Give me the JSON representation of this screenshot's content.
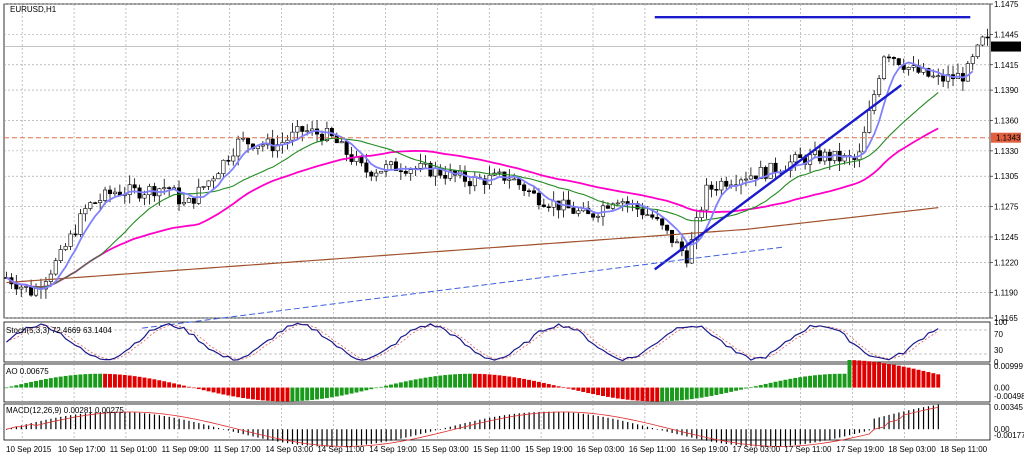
{
  "symbol": "EURUSD,H1",
  "stoch_label": "Stoch(5,3,3) 72.4669 63.1404",
  "ao_label": "AO 0.00675",
  "macd_label": "MACD(12,26,9) 0.00281 0.00275",
  "current_price": "1.1433",
  "hline_price": "1.1343",
  "colors": {
    "bull": "#ffffff",
    "bear": "#000000",
    "ma_fast": "#8080ff",
    "ma_green": "#228b22",
    "ma_magenta": "#ff00c8",
    "ma_brown": "#a0522d",
    "trend": "#1a1acc",
    "resist": "#1a1acc",
    "hline": "#e07050",
    "ao_up": "#1a9a1a",
    "ao_down": "#e00000"
  },
  "chart_data": [
    {
      "type": "candlestick",
      "name": "EURUSD,H1",
      "y_ticks": [
        "1.1475",
        "1.1445",
        "1.1415",
        "1.1390",
        "1.1360",
        "1.1330",
        "1.1305",
        "1.1275",
        "1.1245",
        "1.1220",
        "1.1190",
        "1.1165"
      ],
      "x_ticks": [
        "10 Sep 2015",
        "10 Sep 17:00",
        "11 Sep 01:00",
        "11 Sep 09:00",
        "11 Sep 17:00",
        "14 Sep 03:00",
        "14 Sep 11:00",
        "14 Sep 19:00",
        "15 Sep 03:00",
        "15 Sep 11:00",
        "15 Sep 19:00",
        "16 Sep 03:00",
        "16 Sep 11:00",
        "16 Sep 19:00",
        "17 Sep 03:00",
        "17 Sep 11:00",
        "17 Sep 19:00",
        "18 Sep 03:00",
        "18 Sep 11:00"
      ],
      "ylim": [
        1.1165,
        1.1475
      ],
      "trendline": {
        "x": [
          132,
          182
        ],
        "y": [
          1.1213,
          1.1395
        ]
      },
      "resistance": {
        "x": [
          132,
          196
        ],
        "y": 1.1462
      },
      "horizontal_line": 1.1343,
      "dashed_trend": {
        "x": [
          28,
          158
        ],
        "y": [
          1.1155,
          1.1235
        ]
      }
    },
    {
      "type": "line",
      "name": "Stoch(5,3,3)",
      "ylim": [
        0,
        100
      ],
      "levels": [
        20,
        80
      ],
      "y_ticks": [
        "100",
        "70",
        "30",
        "0"
      ]
    },
    {
      "type": "bar",
      "name": "AO",
      "y_ticks": [
        "0.00999",
        "0.00",
        "-0.00498"
      ],
      "ylim": [
        -0.006,
        0.011
      ]
    },
    {
      "type": "bar",
      "name": "MACD(12,26,9)",
      "y_ticks": [
        "0.00345",
        "0.00",
        "-0.00177"
      ],
      "ylim": [
        -0.0019,
        0.0036
      ]
    }
  ]
}
